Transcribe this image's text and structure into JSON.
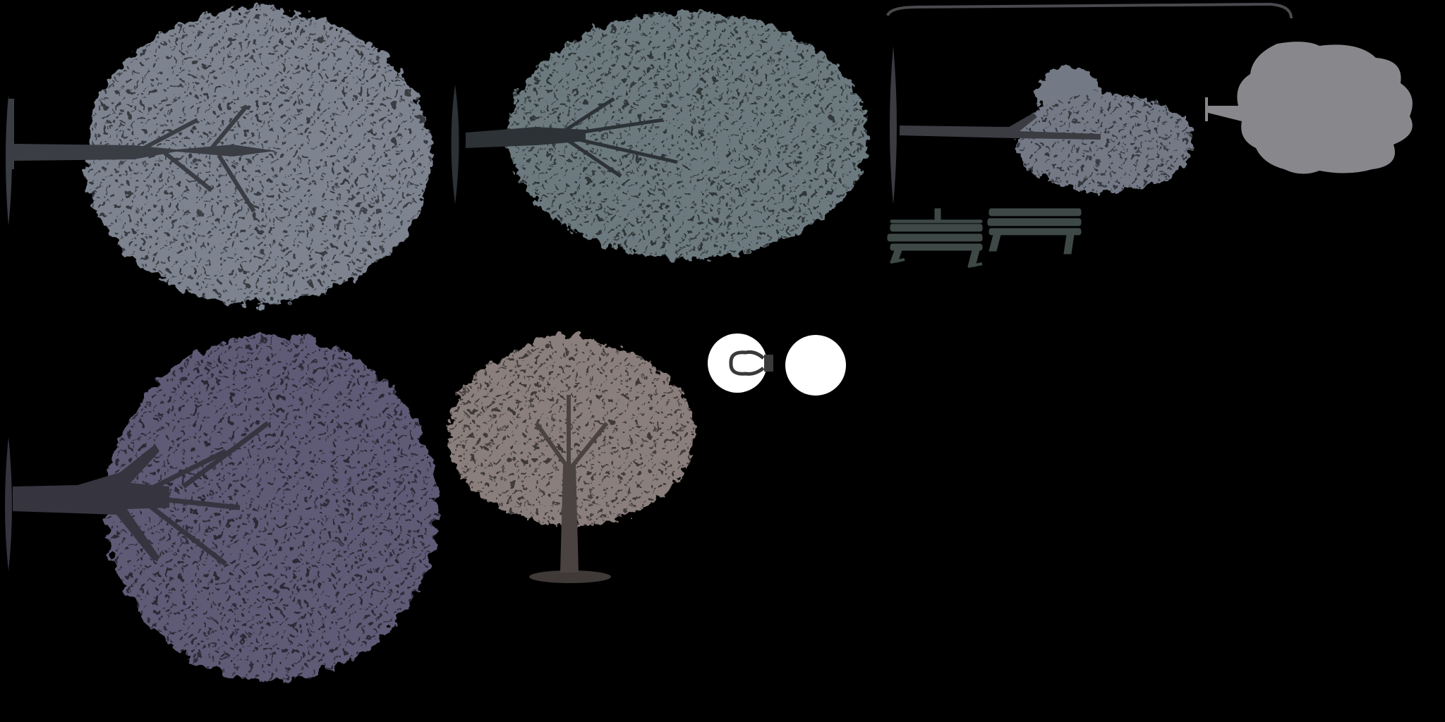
{
  "sheet": {
    "background": "#000000",
    "sprites": [
      {
        "id": "tree-1",
        "icon": "tree-side-icon",
        "foliage": "#7d8490",
        "trunk": "#3b3d44"
      },
      {
        "id": "tree-2",
        "icon": "tree-side-icon",
        "foliage": "#6c7a7f",
        "trunk": "#2c3236"
      },
      {
        "id": "tree-3",
        "icon": "tree-side-icon",
        "foliage": "#737985",
        "trunk": "#3a3c42"
      },
      {
        "id": "cloud",
        "icon": "cloud-blob-icon",
        "fill": "#88878b"
      },
      {
        "id": "bench-1",
        "icon": "bench-icon",
        "fill": "#3e4847"
      },
      {
        "id": "bench-2",
        "icon": "bench-icon",
        "fill": "#3e4847"
      },
      {
        "id": "arc",
        "icon": "arc-stroke-icon",
        "stroke": "#4a4a4e"
      },
      {
        "id": "tree-4",
        "icon": "tree-side-icon",
        "foliage": "#5e5a74",
        "trunk": "#36343f"
      },
      {
        "id": "tree-5",
        "icon": "tree-front-icon",
        "foliage": "#8a7f7b",
        "trunk": "#4a4342"
      },
      {
        "id": "bulb",
        "icon": "bulb-icon",
        "fill": "#ffffff",
        "stroke": "#3a3a3a"
      },
      {
        "id": "orb",
        "icon": "white-circle-icon",
        "fill": "#ffffff"
      }
    ]
  }
}
